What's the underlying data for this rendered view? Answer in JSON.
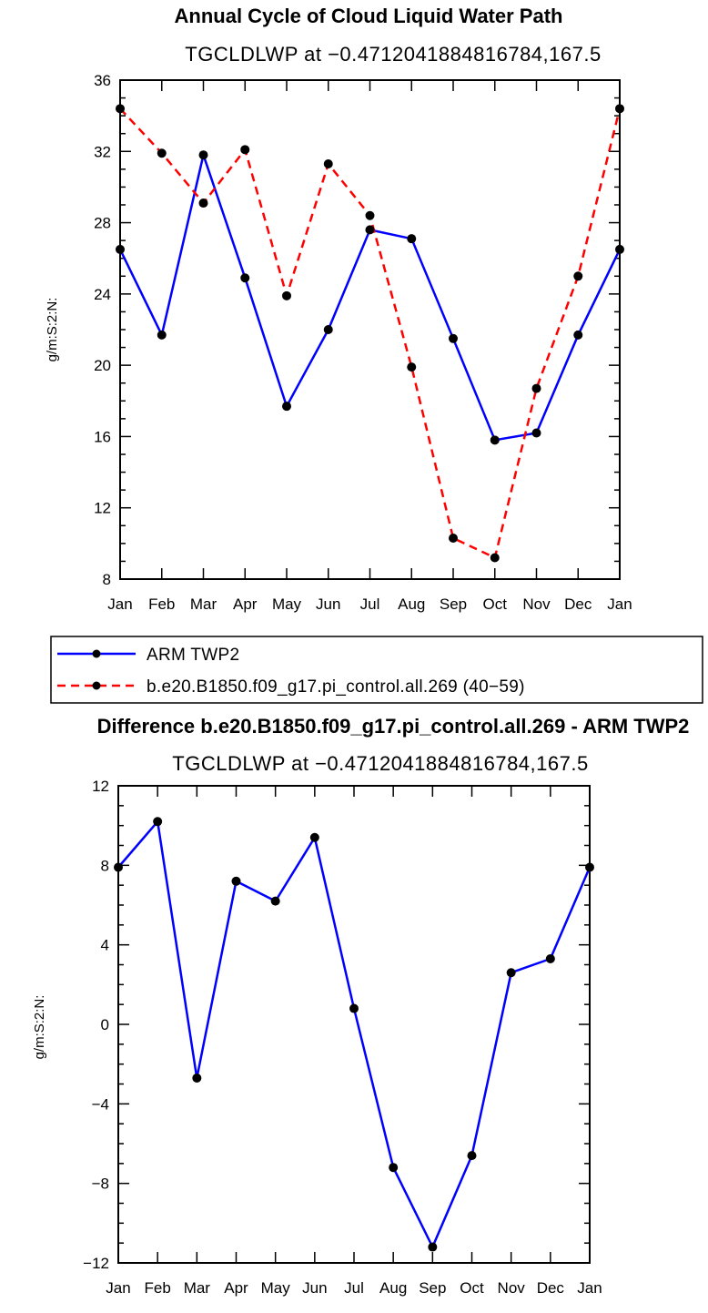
{
  "colors": {
    "blue": "#0000ff",
    "red": "#ff0000",
    "marker": "#000000",
    "frame": "#000000"
  },
  "chart_data": [
    {
      "type": "line",
      "title": "Annual Cycle of Cloud Liquid Water Path",
      "subtitle": "TGCLDLWP at −0.4712041884816784,167.5",
      "xlabel": "",
      "ylabel": "g/m:S:2:N:",
      "categories": [
        "Jan",
        "Feb",
        "Mar",
        "Apr",
        "May",
        "Jun",
        "Jul",
        "Aug",
        "Sep",
        "Oct",
        "Nov",
        "Dec",
        "Jan"
      ],
      "ylim": [
        8,
        36
      ],
      "yticks": [
        8,
        12,
        16,
        20,
        24,
        28,
        32,
        36
      ],
      "ytick_labels": [
        "8",
        "12",
        "16",
        "20",
        "24",
        "28",
        "32",
        "36"
      ],
      "series": [
        {
          "name": "ARM TWP2",
          "color": "blue",
          "dash": "solid",
          "values": [
            26.5,
            21.7,
            31.8,
            24.9,
            17.7,
            22.0,
            27.6,
            27.1,
            21.5,
            15.8,
            16.2,
            21.7,
            26.5
          ]
        },
        {
          "name": "b.e20.B1850.f09_g17.pi_control.all.269 (40−59)",
          "color": "red",
          "dash": "dashed",
          "values": [
            34.4,
            31.9,
            29.1,
            32.1,
            23.9,
            31.3,
            28.4,
            19.9,
            10.3,
            9.2,
            18.7,
            25.0,
            34.4
          ]
        }
      ],
      "legend": {
        "placement": "below",
        "entries": [
          "ARM TWP2",
          "b.e20.B1850.f09_g17.pi_control.all.269 (40−59)"
        ]
      }
    },
    {
      "type": "line",
      "title": "Difference b.e20.B1850.f09_g17.pi_control.all.269 - ARM TWP2",
      "subtitle": "TGCLDLWP at −0.4712041884816784,167.5",
      "xlabel": "",
      "ylabel": "g/m:S:2:N:",
      "categories": [
        "Jan",
        "Feb",
        "Mar",
        "Apr",
        "May",
        "Jun",
        "Jul",
        "Aug",
        "Sep",
        "Oct",
        "Nov",
        "Dec",
        "Jan"
      ],
      "ylim": [
        -12,
        12
      ],
      "yticks": [
        -12,
        -8,
        -4,
        0,
        4,
        8,
        12
      ],
      "ytick_labels": [
        "−12",
        "−8",
        "−4",
        "0",
        "4",
        "8",
        "12"
      ],
      "series": [
        {
          "name": "Difference",
          "color": "blue",
          "dash": "solid",
          "values": [
            7.9,
            10.2,
            -2.7,
            7.2,
            6.2,
            9.4,
            0.8,
            -7.2,
            -11.2,
            -6.6,
            2.6,
            3.3,
            7.9
          ]
        }
      ]
    }
  ]
}
